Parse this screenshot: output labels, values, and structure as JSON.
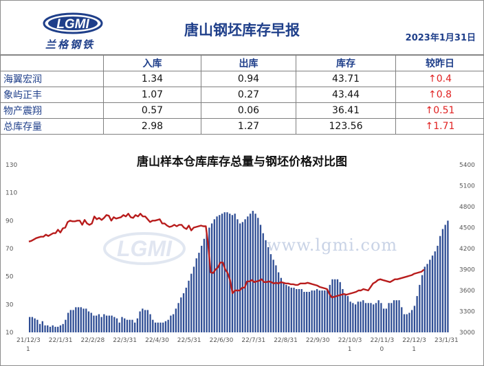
{
  "header": {
    "logo_tagline": "兰格钢铁",
    "title": "唐山钢坯库存早报",
    "date": "2023年1月31日"
  },
  "table": {
    "columns": [
      "",
      "入库",
      "出库",
      "库存",
      "较昨日"
    ],
    "rows": [
      {
        "name": "海翼宏润",
        "in": "1.34",
        "out": "0.94",
        "stock": "43.71",
        "change": "↑0.4"
      },
      {
        "name": "象屿正丰",
        "in": "1.07",
        "out": "0.27",
        "stock": "43.44",
        "change": "↑0.8"
      },
      {
        "name": "物产震翔",
        "in": "0.57",
        "out": "0.06",
        "stock": "36.41",
        "change": "↑0.51"
      },
      {
        "name": "总库存量",
        "in": "2.98",
        "out": "1.27",
        "stock": "123.56",
        "change": "↑1.71"
      }
    ]
  },
  "watermark": {
    "logo": "LGMI",
    "url": "www.lgmi.com"
  },
  "chart_data": {
    "type": "bar+line",
    "title": "唐山样本仓库库存总量与钢坯价格对比图",
    "left_axis": {
      "ylim": [
        10,
        130
      ],
      "ticks": [
        "130",
        "110",
        "90",
        "70",
        "50",
        "30",
        "10"
      ]
    },
    "right_axis": {
      "ylim": [
        3000,
        5400
      ],
      "ticks": [
        "5400",
        "5100",
        "4800",
        "4500",
        "4200",
        "3900",
        "3600",
        "3300",
        "3000"
      ]
    },
    "x_tick_labels": [
      "21/12/3\n1",
      "22/1/31",
      "22/2/28",
      "22/3/31",
      "22/4/30",
      "22/5/31",
      "22/6/30",
      "22/7/31",
      "22/8/31",
      "22/9/30",
      "22/10/3\n1",
      "22/11/3\n0",
      "22/12/3\n1",
      "23/1/31"
    ],
    "bar_color": "#2e4d94",
    "line_color": "#b81c1c",
    "series": [
      {
        "axis": "left",
        "values": [
          21,
          21,
          20,
          19,
          16,
          18,
          15,
          15,
          14,
          15,
          14,
          14,
          15,
          16,
          19,
          24,
          26,
          26,
          28,
          28,
          28,
          27,
          27,
          25,
          24,
          22,
          22,
          23,
          21,
          23,
          22,
          22,
          22,
          21,
          20,
          17,
          21,
          20,
          19,
          19,
          19,
          17,
          20,
          25,
          27,
          26,
          26,
          23,
          19,
          17,
          17,
          17,
          17,
          18,
          19,
          22,
          23,
          27,
          31,
          35,
          38,
          42,
          47,
          52,
          57,
          63,
          67,
          72,
          77,
          81,
          85,
          88,
          91,
          93,
          94,
          95,
          96,
          96,
          95,
          94,
          95,
          91,
          88,
          89,
          91,
          93,
          95,
          97,
          95,
          92,
          87,
          81,
          76,
          71,
          66,
          62,
          58,
          53,
          49,
          46,
          44,
          43,
          42,
          42,
          41,
          41,
          41,
          39,
          39,
          39,
          40,
          40,
          41,
          40,
          40,
          40,
          41,
          44,
          48,
          48,
          48,
          46,
          41,
          37,
          36,
          32,
          31,
          30,
          32,
          32,
          33,
          31,
          31,
          31,
          30,
          31,
          33,
          31,
          27,
          27,
          31,
          31,
          33,
          33,
          33,
          28,
          23,
          23,
          24,
          26,
          29,
          36,
          44,
          51,
          57,
          59,
          62,
          65,
          68,
          72,
          79,
          84,
          87,
          90
        ]
      },
      {
        "axis": "right",
        "values": [
          4300,
          4310,
          4330,
          4350,
          4360,
          4370,
          4370,
          4400,
          4380,
          4400,
          4420,
          4420,
          4470,
          4430,
          4490,
          4500,
          4580,
          4600,
          4590,
          4590,
          4600,
          4600,
          4540,
          4610,
          4560,
          4540,
          4560,
          4660,
          4620,
          4640,
          4610,
          4640,
          4680,
          4670,
          4600,
          4650,
          4630,
          4640,
          4650,
          4680,
          4660,
          4700,
          4650,
          4640,
          4680,
          4660,
          4700,
          4660,
          4660,
          4620,
          4580,
          4600,
          4600,
          4610,
          4620,
          4560,
          4560,
          4530,
          4510,
          4520,
          4540,
          4520,
          4540,
          4540,
          4500,
          4480,
          4530,
          4460,
          4500,
          4510,
          4520,
          4530,
          4520,
          4520,
          4250,
          3860,
          3850,
          3900,
          3930,
          4000,
          4000,
          3900,
          3850,
          3750,
          3560,
          3600,
          3600,
          3600,
          3640,
          3640,
          3730,
          3730,
          3750,
          3720,
          3730,
          3740,
          3760,
          3720,
          3720,
          3730,
          3720,
          3700,
          3710,
          3700,
          3720,
          3710,
          3700,
          3700,
          3690,
          3690,
          3680,
          3680,
          3700,
          3700,
          3700,
          3710,
          3700,
          3690,
          3680,
          3670,
          3650,
          3640,
          3630,
          3620,
          3550,
          3500,
          3510,
          3520,
          3530,
          3540,
          3550,
          3540,
          3550,
          3560,
          3570,
          3580,
          3600,
          3600,
          3620,
          3610,
          3600,
          3650,
          3700,
          3720,
          3750,
          3760,
          3750,
          3740,
          3730,
          3720,
          3740,
          3760,
          3760,
          3770,
          3780,
          3790,
          3800,
          3810,
          3820,
          3840,
          3850,
          3860,
          3870,
          3900
        ]
      }
    ]
  }
}
